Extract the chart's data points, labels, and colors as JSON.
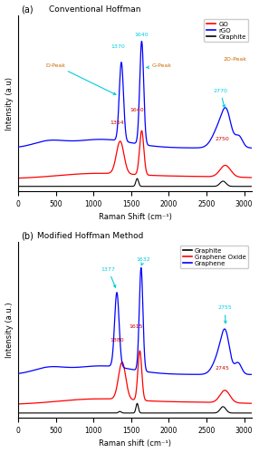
{
  "panel_a": {
    "title": "Conventional Hoffman",
    "xlabel": "Raman Shift (cm⁻¹)",
    "ylabel": "Intensity (a.u)",
    "legend": [
      "GO",
      "rGO",
      "Graphite"
    ],
    "legend_colors": [
      "red",
      "blue",
      "black"
    ]
  },
  "panel_b": {
    "title": "Modified Hoffman Method",
    "xlabel": "Raman shift (cm⁻¹)",
    "ylabel": "Intensity (a.u.)",
    "legend": [
      "Graphite",
      "Graphene Oxide",
      "Graphene"
    ],
    "legend_colors": [
      "black",
      "red",
      "blue"
    ]
  },
  "cyan": "#00ccdd",
  "orange": "#cc6600",
  "dark_red": "#cc0000",
  "xlim": [
    0,
    3100
  ],
  "xticks": [
    0,
    500,
    1000,
    1500,
    2000,
    2500,
    3000
  ]
}
